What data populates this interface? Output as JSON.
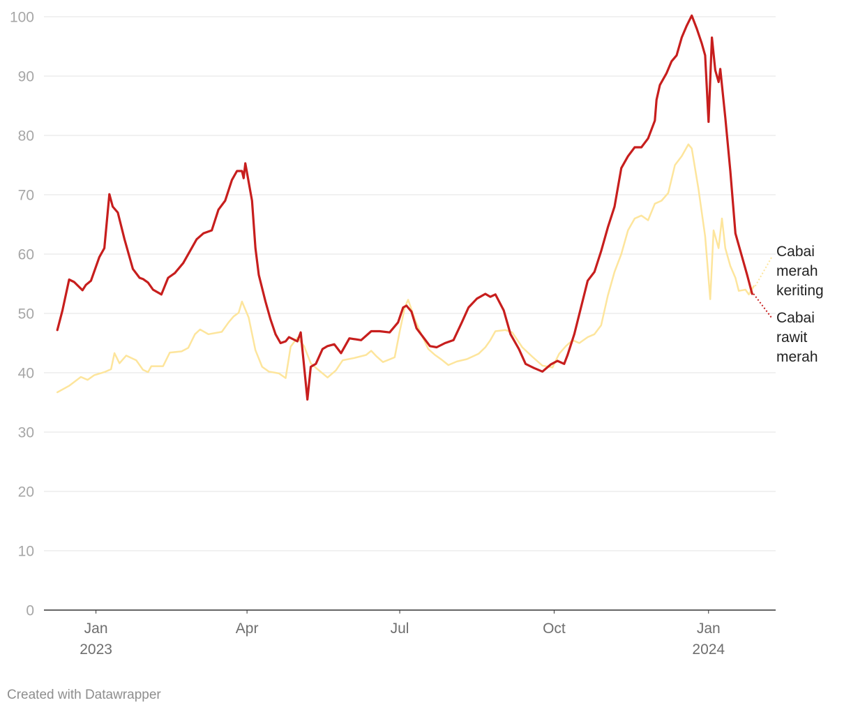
{
  "chart_data": {
    "type": "line",
    "title": "",
    "xlabel": "",
    "ylabel": "",
    "ylim": [
      0,
      100
    ],
    "xlim": [
      "2022-12-01",
      "2024-02-10"
    ],
    "yticks": [
      0,
      10,
      20,
      30,
      40,
      50,
      60,
      70,
      80,
      90,
      100
    ],
    "xticks": [
      {
        "date": "2023-01-01",
        "line1": "Jan",
        "line2": "2023"
      },
      {
        "date": "2023-04-01",
        "line1": "Apr",
        "line2": ""
      },
      {
        "date": "2023-07-01",
        "line1": "Jul",
        "line2": ""
      },
      {
        "date": "2023-10-01",
        "line1": "Oct",
        "line2": ""
      },
      {
        "date": "2024-01-01",
        "line1": "Jan",
        "line2": "2024"
      }
    ],
    "grid": "horizontal",
    "series": [
      {
        "name": "Cabai merah keriting",
        "label_lines": [
          "Cabai",
          "merah",
          "keriting"
        ],
        "color": "#fde59c",
        "points": [
          [
            "2022-12-09",
            36.7
          ],
          [
            "2022-12-16",
            37.8
          ],
          [
            "2022-12-23",
            39.3
          ],
          [
            "2022-12-27",
            38.8
          ],
          [
            "2022-12-31",
            39.6
          ],
          [
            "2023-01-06",
            40.1
          ],
          [
            "2023-01-10",
            40.6
          ],
          [
            "2023-01-12",
            43.3
          ],
          [
            "2023-01-15",
            41.6
          ],
          [
            "2023-01-19",
            42.9
          ],
          [
            "2023-01-25",
            42.1
          ],
          [
            "2023-01-29",
            40.5
          ],
          [
            "2023-02-01",
            40.1
          ],
          [
            "2023-02-03",
            41.1
          ],
          [
            "2023-02-10",
            41.1
          ],
          [
            "2023-02-14",
            43.4
          ],
          [
            "2023-02-21",
            43.6
          ],
          [
            "2023-02-25",
            44.2
          ],
          [
            "2023-03-01",
            46.5
          ],
          [
            "2023-03-04",
            47.3
          ],
          [
            "2023-03-09",
            46.5
          ],
          [
            "2023-03-17",
            46.9
          ],
          [
            "2023-03-21",
            48.5
          ],
          [
            "2023-03-24",
            49.5
          ],
          [
            "2023-03-27",
            50.1
          ],
          [
            "2023-03-29",
            52.0
          ],
          [
            "2023-04-02",
            49.3
          ],
          [
            "2023-04-06",
            43.8
          ],
          [
            "2023-04-10",
            41.0
          ],
          [
            "2023-04-14",
            40.2
          ],
          [
            "2023-04-20",
            39.9
          ],
          [
            "2023-04-24",
            39.1
          ],
          [
            "2023-04-27",
            44.4
          ],
          [
            "2023-05-01",
            45.9
          ],
          [
            "2023-05-05",
            44.5
          ],
          [
            "2023-05-09",
            41.6
          ],
          [
            "2023-05-13",
            40.6
          ],
          [
            "2023-05-19",
            39.2
          ],
          [
            "2023-05-24",
            40.4
          ],
          [
            "2023-05-28",
            42.1
          ],
          [
            "2023-06-04",
            42.5
          ],
          [
            "2023-06-11",
            43.0
          ],
          [
            "2023-06-14",
            43.7
          ],
          [
            "2023-06-17",
            42.8
          ],
          [
            "2023-06-21",
            41.8
          ],
          [
            "2023-06-28",
            42.6
          ],
          [
            "2023-07-01",
            47.0
          ],
          [
            "2023-07-04",
            51.0
          ],
          [
            "2023-07-06",
            52.3
          ],
          [
            "2023-07-10",
            49.0
          ],
          [
            "2023-07-14",
            46.4
          ],
          [
            "2023-07-18",
            44.0
          ],
          [
            "2023-07-22",
            43.0
          ],
          [
            "2023-07-26",
            42.2
          ],
          [
            "2023-07-30",
            41.3
          ],
          [
            "2023-08-04",
            41.9
          ],
          [
            "2023-08-10",
            42.3
          ],
          [
            "2023-08-17",
            43.2
          ],
          [
            "2023-08-21",
            44.3
          ],
          [
            "2023-08-24",
            45.5
          ],
          [
            "2023-08-27",
            47.0
          ],
          [
            "2023-09-02",
            47.2
          ],
          [
            "2023-09-06",
            46.8
          ],
          [
            "2023-09-12",
            44.3
          ],
          [
            "2023-09-18",
            42.7
          ],
          [
            "2023-09-24",
            41.2
          ],
          [
            "2023-09-30",
            40.9
          ],
          [
            "2023-10-04",
            43.2
          ],
          [
            "2023-10-08",
            44.5
          ],
          [
            "2023-10-12",
            45.5
          ],
          [
            "2023-10-16",
            45.0
          ],
          [
            "2023-10-21",
            46.0
          ],
          [
            "2023-10-25",
            46.5
          ],
          [
            "2023-10-29",
            48.0
          ],
          [
            "2023-11-02",
            53.0
          ],
          [
            "2023-11-06",
            57.0
          ],
          [
            "2023-11-10",
            60.0
          ],
          [
            "2023-11-14",
            64.0
          ],
          [
            "2023-11-18",
            66.0
          ],
          [
            "2023-11-22",
            66.5
          ],
          [
            "2023-11-26",
            65.7
          ],
          [
            "2023-11-30",
            68.5
          ],
          [
            "2023-12-04",
            69.0
          ],
          [
            "2023-12-08",
            70.3
          ],
          [
            "2023-12-12",
            75.0
          ],
          [
            "2023-12-16",
            76.5
          ],
          [
            "2023-12-20",
            78.5
          ],
          [
            "2023-12-22",
            77.8
          ],
          [
            "2023-12-26",
            71.0
          ],
          [
            "2023-12-30",
            63.0
          ],
          [
            "2024-01-02",
            52.4
          ],
          [
            "2024-01-04",
            64.0
          ],
          [
            "2024-01-07",
            61.0
          ],
          [
            "2024-01-09",
            66.0
          ],
          [
            "2024-01-11",
            61.0
          ],
          [
            "2024-01-14",
            58.0
          ],
          [
            "2024-01-17",
            56.0
          ],
          [
            "2024-01-19",
            53.8
          ],
          [
            "2024-01-23",
            54.0
          ],
          [
            "2024-01-25",
            53.2
          ],
          [
            "2024-01-28",
            54.6
          ]
        ]
      },
      {
        "name": "Cabai rawit merah",
        "label_lines": [
          "Cabai",
          "rawit",
          "merah"
        ],
        "color": "#c71e1d",
        "points": [
          [
            "2022-12-09",
            47.2
          ],
          [
            "2022-12-12",
            50.5
          ],
          [
            "2022-12-16",
            55.7
          ],
          [
            "2022-12-19",
            55.3
          ],
          [
            "2022-12-24",
            53.9
          ],
          [
            "2022-12-26",
            54.8
          ],
          [
            "2022-12-29",
            55.5
          ],
          [
            "2023-01-03",
            59.5
          ],
          [
            "2023-01-06",
            61.0
          ],
          [
            "2023-01-09",
            70.1
          ],
          [
            "2023-01-11",
            68.0
          ],
          [
            "2023-01-14",
            67.0
          ],
          [
            "2023-01-18",
            62.5
          ],
          [
            "2023-01-23",
            57.5
          ],
          [
            "2023-01-27",
            56.0
          ],
          [
            "2023-01-29",
            55.8
          ],
          [
            "2023-02-01",
            55.2
          ],
          [
            "2023-02-04",
            54.0
          ],
          [
            "2023-02-09",
            53.2
          ],
          [
            "2023-02-13",
            56.0
          ],
          [
            "2023-02-17",
            56.8
          ],
          [
            "2023-02-22",
            58.5
          ],
          [
            "2023-02-26",
            60.5
          ],
          [
            "2023-03-02",
            62.5
          ],
          [
            "2023-03-06",
            63.5
          ],
          [
            "2023-03-11",
            64.0
          ],
          [
            "2023-03-15",
            67.5
          ],
          [
            "2023-03-19",
            69.0
          ],
          [
            "2023-03-23",
            72.5
          ],
          [
            "2023-03-26",
            74.0
          ],
          [
            "2023-03-29",
            74.0
          ],
          [
            "2023-03-30",
            72.8
          ],
          [
            "2023-03-31",
            75.3
          ],
          [
            "2023-04-04",
            69.0
          ],
          [
            "2023-04-06",
            61.0
          ],
          [
            "2023-04-08",
            56.5
          ],
          [
            "2023-04-12",
            52.0
          ],
          [
            "2023-04-15",
            49.0
          ],
          [
            "2023-04-18",
            46.5
          ],
          [
            "2023-04-21",
            45.0
          ],
          [
            "2023-04-24",
            45.3
          ],
          [
            "2023-04-26",
            46.0
          ],
          [
            "2023-05-01",
            45.3
          ],
          [
            "2023-05-03",
            46.8
          ],
          [
            "2023-05-07",
            35.5
          ],
          [
            "2023-05-09",
            41.0
          ],
          [
            "2023-05-12",
            41.5
          ],
          [
            "2023-05-16",
            44.0
          ],
          [
            "2023-05-19",
            44.5
          ],
          [
            "2023-05-23",
            44.8
          ],
          [
            "2023-05-27",
            43.3
          ],
          [
            "2023-06-01",
            45.8
          ],
          [
            "2023-06-08",
            45.5
          ],
          [
            "2023-06-14",
            47.0
          ],
          [
            "2023-06-19",
            47.0
          ],
          [
            "2023-06-25",
            46.8
          ],
          [
            "2023-06-30",
            48.5
          ],
          [
            "2023-07-03",
            51.0
          ],
          [
            "2023-07-05",
            51.3
          ],
          [
            "2023-07-08",
            50.3
          ],
          [
            "2023-07-11",
            47.5
          ],
          [
            "2023-07-15",
            46.0
          ],
          [
            "2023-07-19",
            44.5
          ],
          [
            "2023-07-23",
            44.3
          ],
          [
            "2023-07-28",
            45.0
          ],
          [
            "2023-08-02",
            45.5
          ],
          [
            "2023-08-07",
            48.5
          ],
          [
            "2023-08-11",
            51.0
          ],
          [
            "2023-08-16",
            52.5
          ],
          [
            "2023-08-21",
            53.3
          ],
          [
            "2023-08-24",
            52.8
          ],
          [
            "2023-08-27",
            53.2
          ],
          [
            "2023-09-01",
            50.5
          ],
          [
            "2023-09-05",
            46.5
          ],
          [
            "2023-09-10",
            44.0
          ],
          [
            "2023-09-14",
            41.5
          ],
          [
            "2023-09-19",
            40.8
          ],
          [
            "2023-09-24",
            40.2
          ],
          [
            "2023-09-29",
            41.4
          ],
          [
            "2023-10-03",
            42.0
          ],
          [
            "2023-10-07",
            41.5
          ],
          [
            "2023-10-09",
            43.0
          ],
          [
            "2023-10-13",
            46.5
          ],
          [
            "2023-10-17",
            51.0
          ],
          [
            "2023-10-21",
            55.5
          ],
          [
            "2023-10-25",
            57.0
          ],
          [
            "2023-10-29",
            60.5
          ],
          [
            "2023-11-02",
            64.5
          ],
          [
            "2023-11-06",
            68.0
          ],
          [
            "2023-11-10",
            74.5
          ],
          [
            "2023-11-14",
            76.5
          ],
          [
            "2023-11-18",
            78.0
          ],
          [
            "2023-11-22",
            78.0
          ],
          [
            "2023-11-26",
            79.5
          ],
          [
            "2023-11-30",
            82.5
          ],
          [
            "2023-12-01",
            86.0
          ],
          [
            "2023-12-03",
            88.5
          ],
          [
            "2023-12-07",
            90.5
          ],
          [
            "2023-12-10",
            92.5
          ],
          [
            "2023-12-13",
            93.5
          ],
          [
            "2023-12-16",
            96.5
          ],
          [
            "2023-12-19",
            98.5
          ],
          [
            "2023-12-22",
            100.2
          ],
          [
            "2023-12-25",
            98.0
          ],
          [
            "2023-12-28",
            95.5
          ],
          [
            "2023-12-30",
            93.5
          ],
          [
            "2024-01-01",
            82.3
          ],
          [
            "2024-01-03",
            96.5
          ],
          [
            "2024-01-05",
            91.0
          ],
          [
            "2024-01-07",
            89.0
          ],
          [
            "2024-01-08",
            91.2
          ],
          [
            "2024-01-11",
            83.0
          ],
          [
            "2024-01-14",
            74.0
          ],
          [
            "2024-01-17",
            63.5
          ],
          [
            "2024-01-21",
            59.5
          ],
          [
            "2024-01-24",
            56.5
          ],
          [
            "2024-01-27",
            53.3
          ]
        ]
      }
    ]
  },
  "credit": "Created with Datawrapper"
}
